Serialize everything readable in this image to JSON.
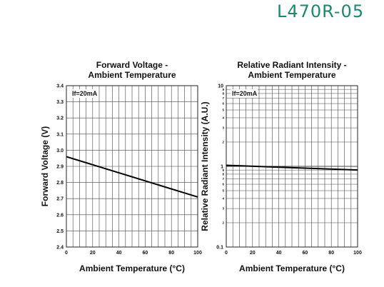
{
  "header": {
    "part_number": "L470R-05"
  },
  "chart_data": [
    {
      "type": "line",
      "title_line1": "Forward Voltage -",
      "title_line2": "Ambient Temperature",
      "xlabel": "Ambient Temperature (°C)",
      "ylabel": "Forward Voltage (V)",
      "annotation": "If=20mA",
      "xlim": [
        0,
        100
      ],
      "ylim": [
        2.4,
        3.4
      ],
      "xticks": [
        0,
        20,
        40,
        60,
        80,
        100
      ],
      "yticks": [
        2.4,
        2.5,
        2.6,
        2.7,
        2.8,
        2.9,
        3.0,
        3.1,
        3.2,
        3.3,
        3.4
      ],
      "ytick_labels": [
        "2.4",
        "2.5",
        "2.6",
        "2.7",
        "2.8",
        "2.9",
        "3.0",
        "3.1",
        "3.2",
        "3.3",
        "3.4"
      ],
      "grid": true,
      "log_y": false,
      "series": [
        {
          "x": [
            0,
            100
          ],
          "y": [
            2.96,
            2.71
          ]
        }
      ]
    },
    {
      "type": "line",
      "title_line1": "Relative Radiant Intensity -",
      "title_line2": "Ambient Temperature",
      "xlabel": "Ambient Temperature (°C)",
      "ylabel": "Relative Radiant Intensity (A.U.)",
      "annotation": "If=20mA",
      "xlim": [
        0,
        100
      ],
      "ylim": [
        0.1,
        10
      ],
      "xticks": [
        0,
        20,
        40,
        60,
        80,
        100
      ],
      "yticks_major": [
        0.1,
        1,
        10
      ],
      "ytick_major_labels": [
        "0.1",
        "1",
        "10"
      ],
      "ytick_minor_labels": [
        "2",
        "3",
        "4",
        "5",
        "6",
        "7",
        "8",
        "9"
      ],
      "grid": true,
      "log_y": true,
      "series": [
        {
          "x": [
            0,
            100
          ],
          "y": [
            1.03,
            0.9
          ]
        }
      ]
    }
  ]
}
